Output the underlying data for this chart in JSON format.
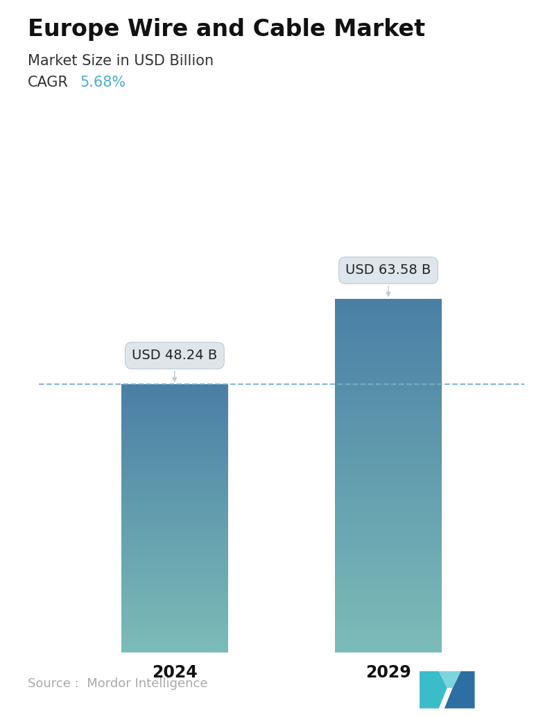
{
  "title": "Europe Wire and Cable Market",
  "subtitle": "Market Size in USD Billion",
  "cagr_label": "CAGR",
  "cagr_value": "5.68%",
  "cagr_color": "#4BADD4",
  "categories": [
    "2024",
    "2029"
  ],
  "values": [
    48.24,
    63.58
  ],
  "labels": [
    "USD 48.24 B",
    "USD 63.58 B"
  ],
  "bar_top_color": "#4A7FA5",
  "bar_bottom_color": "#7BBCB8",
  "dashed_line_color": "#7AACCC",
  "source_text": "Source :  Mordor Intelligence",
  "source_color": "#AAAAAA",
  "background_color": "#FFFFFF",
  "title_fontsize": 24,
  "subtitle_fontsize": 15,
  "cagr_fontsize": 15,
  "label_fontsize": 14,
  "xtick_fontsize": 17,
  "source_fontsize": 13,
  "ylim": [
    0,
    80
  ],
  "bar_width": 0.22,
  "positions": [
    0.28,
    0.72
  ]
}
